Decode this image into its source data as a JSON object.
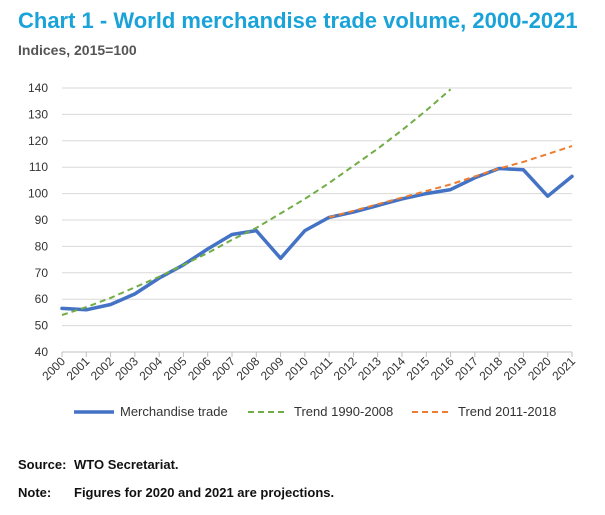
{
  "header": {
    "title": "Chart 1 - World merchandise trade volume, 2000-2021",
    "subtitle": "Indices, 2015=100"
  },
  "footer": {
    "source_label": "Source:",
    "source_text": "WTO Secretariat.",
    "note_label": "Note:",
    "note_text": "Figures for 2020 and 2021 are projections."
  },
  "colors": {
    "title": "#1aa3d8",
    "merchandise": "#4472c4",
    "trend_1990_2008": "#70ad47",
    "trend_2011_2018": "#ed7d31",
    "grid": "#d9d9d9"
  },
  "chart_data": {
    "type": "line",
    "title": "Chart 1 - World merchandise trade volume, 2000-2021",
    "subtitle": "Indices, 2015=100",
    "xlabel": "",
    "ylabel": "",
    "ylim": [
      40,
      140
    ],
    "yticks": [
      40,
      50,
      60,
      70,
      80,
      90,
      100,
      110,
      120,
      130,
      140
    ],
    "grid": "horizontal",
    "legend_position": "bottom",
    "x": [
      "2000",
      "2001",
      "2002",
      "2003",
      "2004",
      "2005",
      "2006",
      "2007",
      "2008",
      "2009",
      "2010",
      "2011",
      "2012",
      "2013",
      "2014",
      "2015",
      "2016",
      "2017",
      "2018",
      "2019",
      "2020",
      "2021"
    ],
    "series": [
      {
        "name": "Merchandise trade",
        "style": "solid",
        "color": "#4472c4",
        "values": [
          56.5,
          56,
          58,
          62,
          68,
          73,
          79,
          84.5,
          86,
          75.5,
          86,
          91,
          93,
          95.5,
          98,
          100,
          101.5,
          106,
          109.5,
          109,
          99,
          106.5
        ]
      },
      {
        "name": "Trend 1990-2008",
        "style": "dashed",
        "color": "#70ad47",
        "values": [
          54,
          57,
          60.5,
          64.5,
          68.5,
          73,
          77.5,
          82.5,
          87,
          92.5,
          98,
          104,
          110.5,
          117,
          124,
          131.5,
          139.5,
          null,
          null,
          null,
          null,
          null
        ]
      },
      {
        "name": "Trend 2011-2018",
        "style": "dashed",
        "color": "#ed7d31",
        "values": [
          null,
          null,
          null,
          null,
          null,
          null,
          null,
          null,
          null,
          null,
          null,
          91,
          93.5,
          96,
          98.5,
          101,
          103.5,
          106.5,
          109.5,
          112,
          115,
          118
        ]
      }
    ]
  }
}
